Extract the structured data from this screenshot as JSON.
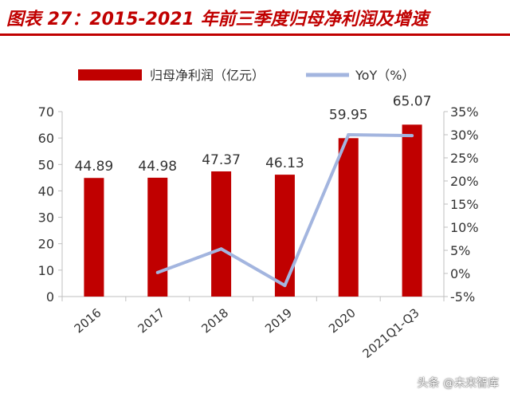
{
  "figure": {
    "title": "图表 27：2015-2021 年前三季度归母净利润及增速",
    "watermark": "头条 @未来智库"
  },
  "colors": {
    "bar": "#c00000",
    "line": "#a3b5df",
    "title": "#c00000"
  },
  "chart_data": {
    "type": "bar+line",
    "categories": [
      "2016",
      "2017",
      "2018",
      "2019",
      "2020",
      "2021Q1-Q3"
    ],
    "series": [
      {
        "name": "归母净利润（亿元）",
        "type": "bar",
        "axis": "left",
        "values": [
          44.89,
          44.98,
          47.37,
          46.13,
          59.95,
          65.07
        ],
        "labels": [
          "44.89",
          "44.98",
          "47.37",
          "46.13",
          "59.95",
          "65.07"
        ]
      },
      {
        "name": "YoY（%）",
        "type": "line",
        "axis": "right",
        "values": [
          null,
          0.2,
          5.3,
          -2.6,
          30.0,
          29.8
        ]
      }
    ],
    "y_left": {
      "lim": [
        0,
        70
      ],
      "ticks": [
        0,
        10,
        20,
        30,
        40,
        50,
        60,
        70
      ]
    },
    "y_right": {
      "lim": [
        -5,
        35
      ],
      "ticks": [
        "-5%",
        "0%",
        "5%",
        "10%",
        "15%",
        "20%",
        "25%",
        "30%",
        "35%"
      ]
    },
    "legend": "top",
    "grid": false
  }
}
